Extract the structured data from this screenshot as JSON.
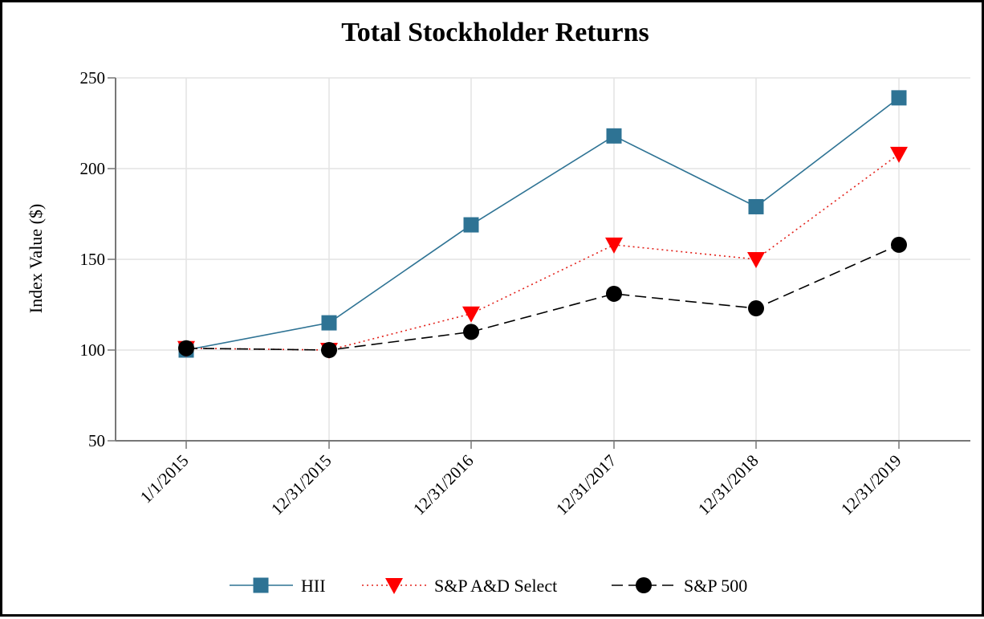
{
  "chart_data": {
    "type": "line",
    "title": "Total Stockholder Returns",
    "xlabel": "",
    "ylabel": "Index Value ($)",
    "categories": [
      "1/1/2015",
      "12/31/2015",
      "12/31/2016",
      "12/31/2017",
      "12/31/2018",
      "12/31/2019"
    ],
    "ylim": [
      50,
      250
    ],
    "yticks": [
      50,
      100,
      150,
      200,
      250
    ],
    "grid": true,
    "legend_position": "bottom-center",
    "series": [
      {
        "name": "HII",
        "values": [
          100,
          115,
          169,
          218,
          179,
          239
        ],
        "color": "#2e7394",
        "line_style": "solid",
        "marker": "square"
      },
      {
        "name": "S&P A&D Select",
        "values": [
          101,
          100,
          120,
          158,
          150,
          208
        ],
        "color": "#e3221b",
        "line_style": "dotted",
        "marker": "triangle-down",
        "marker_color": "#ff0000"
      },
      {
        "name": "S&P 500",
        "values": [
          101,
          100,
          110,
          131,
          123,
          158
        ],
        "color": "#000000",
        "line_style": "dashed",
        "marker": "circle"
      }
    ]
  }
}
